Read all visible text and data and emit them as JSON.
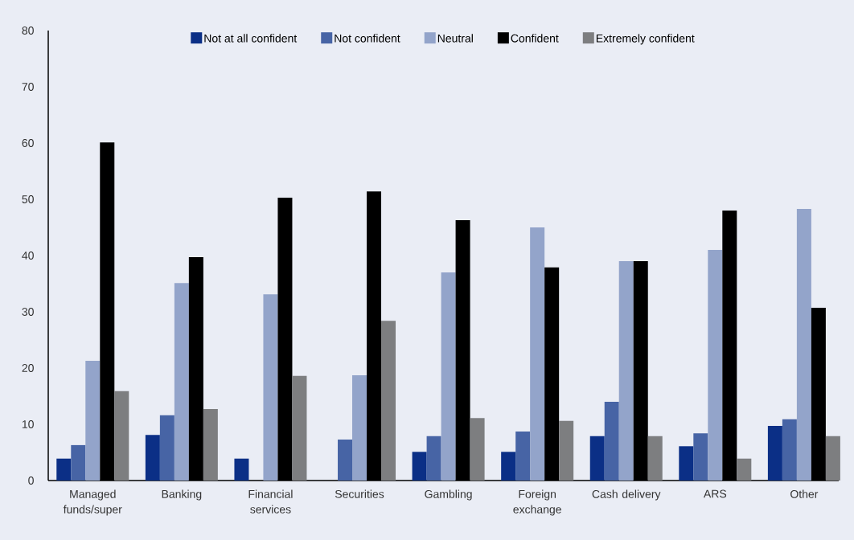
{
  "chart_data": {
    "type": "bar",
    "categories": [
      "Managed funds/super",
      "Banking",
      "Financial services",
      "Securities",
      "Gambling",
      "Foreign exchange",
      "Cash delivery",
      "ARS",
      "Other"
    ],
    "series": [
      {
        "name": "Not at all confident",
        "color": "#0b2f86",
        "values": [
          3.9,
          8.1,
          3.9,
          0,
          5.1,
          5.1,
          7.9,
          6.1,
          9.7
        ]
      },
      {
        "name": "Not confident",
        "color": "#4764a5",
        "values": [
          6.3,
          11.6,
          0,
          7.3,
          7.9,
          8.7,
          14.0,
          8.4,
          10.9
        ]
      },
      {
        "name": "Neutral",
        "color": "#93a4ca",
        "values": [
          21.3,
          35.1,
          33.1,
          18.7,
          37.0,
          45.0,
          39.0,
          41.0,
          48.3
        ]
      },
      {
        "name": "Confident",
        "color": "#000000",
        "values": [
          60.1,
          39.7,
          50.3,
          51.4,
          46.3,
          37.9,
          39.0,
          48.0,
          30.7
        ]
      },
      {
        "name": "Extremely confident",
        "color": "#7d7e80",
        "values": [
          15.9,
          12.7,
          18.6,
          28.4,
          11.1,
          10.6,
          7.9,
          3.9,
          7.9
        ]
      }
    ],
    "ylim": [
      0,
      80
    ],
    "yticks": [
      0,
      10,
      20,
      30,
      40,
      50,
      60,
      70,
      80
    ],
    "legend": "top"
  }
}
